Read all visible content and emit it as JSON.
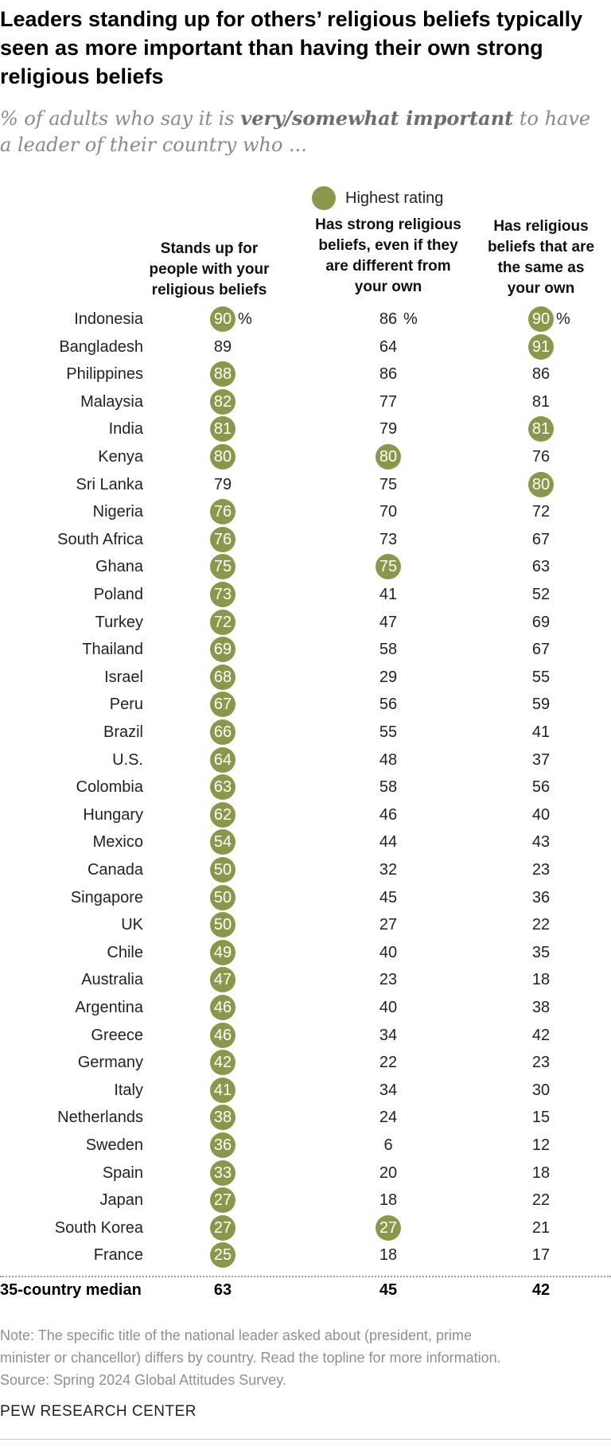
{
  "title": "Leaders standing up for others’ religious beliefs typically seen as more important than having their own strong religious beliefs",
  "subtitle_pre": "% of adults who say it is ",
  "subtitle_bold": "very/somewhat important",
  "subtitle_post": " to have a leader of their country who ...",
  "legend_label": "Highest rating",
  "highlight_color": "#8d974c",
  "columns": [
    [
      "Stands up for",
      "people with your",
      "religious beliefs"
    ],
    [
      "Has strong religious",
      "beliefs, even if they",
      "are different from",
      "your own"
    ],
    [
      "Has religious",
      "beliefs that are",
      "the same as",
      "your own"
    ]
  ],
  "percent_sign": "%",
  "median_label": "35-country median",
  "median_values": [
    "63",
    "45",
    "42"
  ],
  "note_lines": [
    "Note: The specific title of the national leader asked about (president, prime",
    "minister or chancellor) differs by country. Read the topline for more information.",
    "Source: Spring 2024 Global Attitudes Survey."
  ],
  "footer": "PEW RESEARCH CENTER",
  "chart_data": {
    "type": "table",
    "title": "Leaders standing up for others’ religious beliefs typically seen as more important than having their own strong religious beliefs",
    "series": [
      {
        "name": "Stands up for people with your religious beliefs"
      },
      {
        "name": "Has strong religious beliefs, even if they are different from your own"
      },
      {
        "name": "Has religious beliefs that are the same as your own"
      }
    ],
    "rows": [
      {
        "country": "Indonesia",
        "values": [
          90,
          86,
          90
        ],
        "highlight": [
          true,
          false,
          true
        ],
        "pct": true
      },
      {
        "country": "Bangladesh",
        "values": [
          89,
          64,
          91
        ],
        "highlight": [
          false,
          false,
          true
        ]
      },
      {
        "country": "Philippines",
        "values": [
          88,
          86,
          86
        ],
        "highlight": [
          true,
          false,
          false
        ]
      },
      {
        "country": "Malaysia",
        "values": [
          82,
          77,
          81
        ],
        "highlight": [
          true,
          false,
          false
        ]
      },
      {
        "country": "India",
        "values": [
          81,
          79,
          81
        ],
        "highlight": [
          true,
          false,
          true
        ]
      },
      {
        "country": "Kenya",
        "values": [
          80,
          80,
          76
        ],
        "highlight": [
          true,
          true,
          false
        ]
      },
      {
        "country": "Sri Lanka",
        "values": [
          79,
          75,
          80
        ],
        "highlight": [
          false,
          false,
          true
        ]
      },
      {
        "country": "Nigeria",
        "values": [
          76,
          70,
          72
        ],
        "highlight": [
          true,
          false,
          false
        ]
      },
      {
        "country": "South Africa",
        "values": [
          76,
          73,
          67
        ],
        "highlight": [
          true,
          false,
          false
        ]
      },
      {
        "country": "Ghana",
        "values": [
          75,
          75,
          63
        ],
        "highlight": [
          true,
          true,
          false
        ]
      },
      {
        "country": "Poland",
        "values": [
          73,
          41,
          52
        ],
        "highlight": [
          true,
          false,
          false
        ]
      },
      {
        "country": "Turkey",
        "values": [
          72,
          47,
          69
        ],
        "highlight": [
          true,
          false,
          false
        ]
      },
      {
        "country": "Thailand",
        "values": [
          69,
          58,
          67
        ],
        "highlight": [
          true,
          false,
          false
        ]
      },
      {
        "country": "Israel",
        "values": [
          68,
          29,
          55
        ],
        "highlight": [
          true,
          false,
          false
        ]
      },
      {
        "country": "Peru",
        "values": [
          67,
          56,
          59
        ],
        "highlight": [
          true,
          false,
          false
        ]
      },
      {
        "country": "Brazil",
        "values": [
          66,
          55,
          41
        ],
        "highlight": [
          true,
          false,
          false
        ]
      },
      {
        "country": "U.S.",
        "values": [
          64,
          48,
          37
        ],
        "highlight": [
          true,
          false,
          false
        ]
      },
      {
        "country": "Colombia",
        "values": [
          63,
          58,
          56
        ],
        "highlight": [
          true,
          false,
          false
        ]
      },
      {
        "country": "Hungary",
        "values": [
          62,
          46,
          40
        ],
        "highlight": [
          true,
          false,
          false
        ]
      },
      {
        "country": "Mexico",
        "values": [
          54,
          44,
          43
        ],
        "highlight": [
          true,
          false,
          false
        ]
      },
      {
        "country": "Canada",
        "values": [
          50,
          32,
          23
        ],
        "highlight": [
          true,
          false,
          false
        ]
      },
      {
        "country": "Singapore",
        "values": [
          50,
          45,
          36
        ],
        "highlight": [
          true,
          false,
          false
        ]
      },
      {
        "country": "UK",
        "values": [
          50,
          27,
          22
        ],
        "highlight": [
          true,
          false,
          false
        ]
      },
      {
        "country": "Chile",
        "values": [
          49,
          40,
          35
        ],
        "highlight": [
          true,
          false,
          false
        ]
      },
      {
        "country": "Australia",
        "values": [
          47,
          23,
          18
        ],
        "highlight": [
          true,
          false,
          false
        ]
      },
      {
        "country": "Argentina",
        "values": [
          46,
          40,
          38
        ],
        "highlight": [
          true,
          false,
          false
        ]
      },
      {
        "country": "Greece",
        "values": [
          46,
          34,
          42
        ],
        "highlight": [
          true,
          false,
          false
        ]
      },
      {
        "country": "Germany",
        "values": [
          42,
          22,
          23
        ],
        "highlight": [
          true,
          false,
          false
        ]
      },
      {
        "country": "Italy",
        "values": [
          41,
          34,
          30
        ],
        "highlight": [
          true,
          false,
          false
        ]
      },
      {
        "country": "Netherlands",
        "values": [
          38,
          24,
          15
        ],
        "highlight": [
          true,
          false,
          false
        ]
      },
      {
        "country": "Sweden",
        "values": [
          36,
          6,
          12
        ],
        "highlight": [
          true,
          false,
          false
        ]
      },
      {
        "country": "Spain",
        "values": [
          33,
          20,
          18
        ],
        "highlight": [
          true,
          false,
          false
        ]
      },
      {
        "country": "Japan",
        "values": [
          27,
          18,
          22
        ],
        "highlight": [
          true,
          false,
          false
        ]
      },
      {
        "country": "South Korea",
        "values": [
          27,
          27,
          21
        ],
        "highlight": [
          true,
          true,
          false
        ]
      },
      {
        "country": "France",
        "values": [
          25,
          18,
          17
        ],
        "highlight": [
          true,
          false,
          false
        ]
      }
    ]
  }
}
